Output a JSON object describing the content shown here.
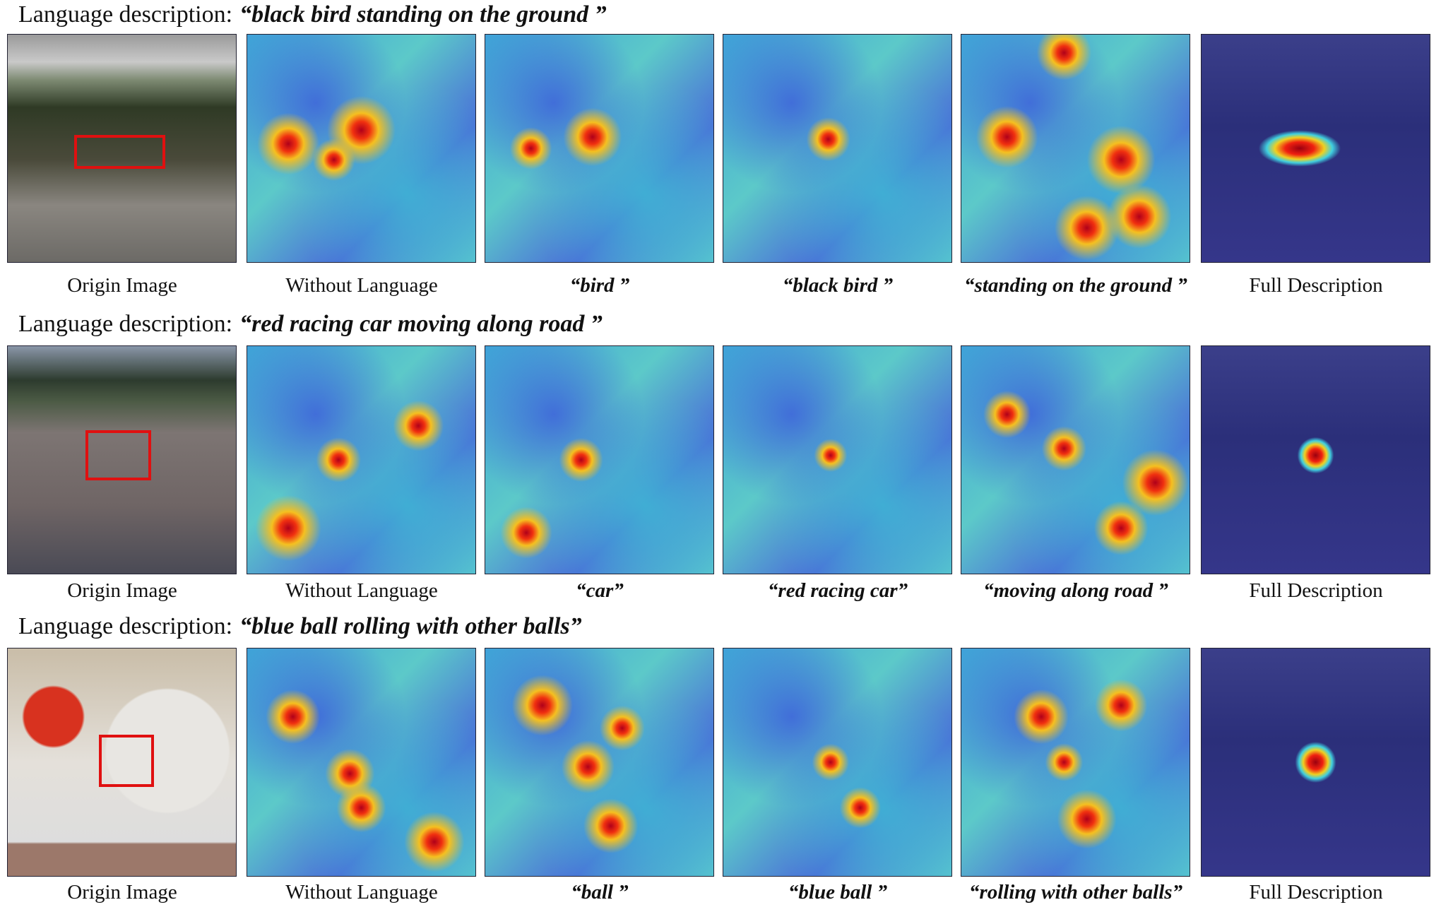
{
  "rows": [
    {
      "prefix": "Language description:",
      "query": "“black bird standing on the ground ”",
      "captions": [
        "Origin Image",
        "Without Language",
        "“bird ”",
        "“black bird ”",
        "“standing on the ground ”",
        "Full Description"
      ]
    },
    {
      "prefix": "Language description:",
      "query": "“red racing car moving along road ”",
      "captions": [
        "Origin Image",
        "Without Language",
        "“car”",
        "“red racing car”",
        "“moving along road ”",
        "Full Description"
      ]
    },
    {
      "prefix": "Language description:",
      "query": "“blue ball rolling with other balls”",
      "captions": [
        "Origin Image",
        "Without Language",
        "“ball ”",
        "“blue ball ”",
        "“rolling with other balls”",
        "Full Description"
      ]
    }
  ]
}
